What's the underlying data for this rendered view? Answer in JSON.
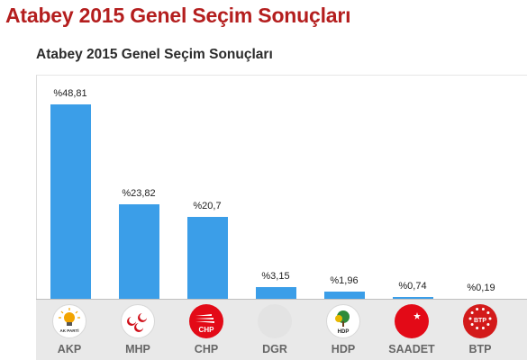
{
  "page_title": "Atabey 2015 Genel Seçim Sonuçları",
  "chart_data": {
    "type": "bar",
    "title": "Atabey 2015 Genel Seçim Sonuçları",
    "categories": [
      "AKP",
      "MHP",
      "CHP",
      "DGR",
      "HDP",
      "SAADET",
      "BTP"
    ],
    "values": [
      48.81,
      23.82,
      20.7,
      3.15,
      1.96,
      0.74,
      0.19
    ],
    "data_labels": [
      "%48,81",
      "%23,82",
      "%20,7",
      "%3,15",
      "%1,96",
      "%0,74",
      "%0,19"
    ],
    "ylim": [
      0,
      52
    ],
    "grid": false,
    "bar_color": "#3b9ee8"
  },
  "logos": [
    {
      "party": "AKP",
      "icon": "akp-lightbulb-icon",
      "bg": "#ffffff",
      "fg": "#f2a400",
      "text": "AK PARTİ"
    },
    {
      "party": "MHP",
      "icon": "mhp-crescents-icon",
      "bg": "#ffffff",
      "fg": "#d0101a",
      "text": ""
    },
    {
      "party": "CHP",
      "icon": "chp-six-arrows-icon",
      "bg": "#e30a17",
      "fg": "#ffffff",
      "text": "CHP"
    },
    {
      "party": "DGR",
      "icon": "dgr-placeholder-icon",
      "bg": "#e3e3e3",
      "fg": "#e3e3e3",
      "text": ""
    },
    {
      "party": "HDP",
      "icon": "hdp-tree-icon",
      "bg": "#ffffff",
      "fg": "#2e8b3a",
      "text": "HDP"
    },
    {
      "party": "SAADET",
      "icon": "saadet-crescent-star-icon",
      "bg": "#e30a17",
      "fg": "#ffffff",
      "text": ""
    },
    {
      "party": "BTP",
      "icon": "btp-stars-icon",
      "bg": "#d31a1a",
      "fg": "#ffffff",
      "text": "BTP"
    }
  ]
}
